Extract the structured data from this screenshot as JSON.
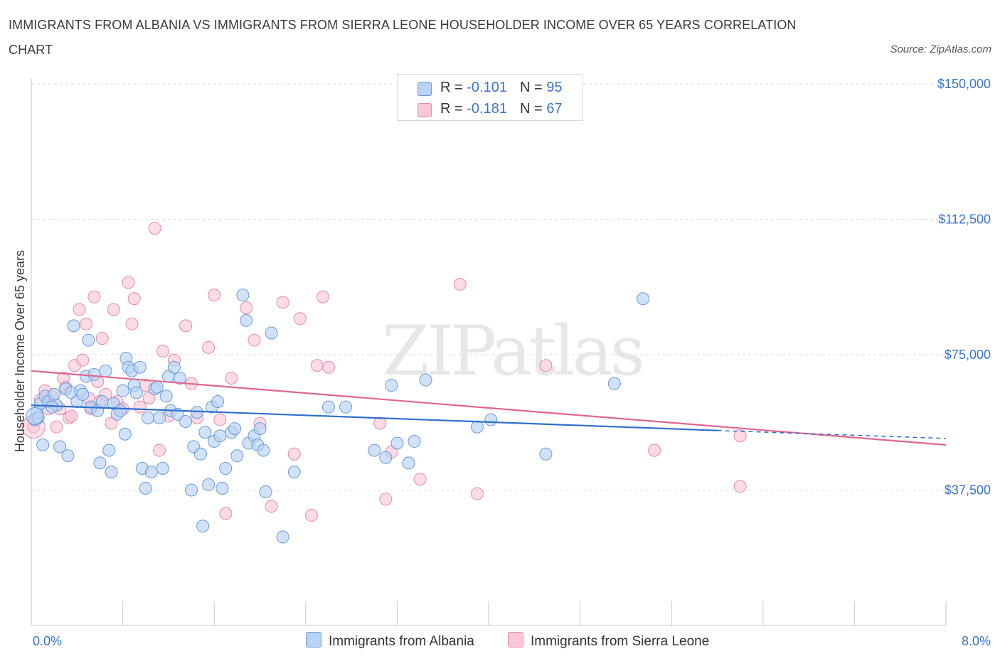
{
  "title": "IMMIGRANTS FROM ALBANIA VS IMMIGRANTS FROM SIERRA LEONE HOUSEHOLDER INCOME OVER 65 YEARS CORRELATION CHART",
  "source": "Source: ZipAtlas.com",
  "watermark": "ZIPatlas",
  "legend": {
    "albania": {
      "r_label": "R =",
      "r_value": "-0.101",
      "n_label": "N =",
      "n_value": "95"
    },
    "sierra": {
      "r_label": "R =",
      "r_value": "-0.181",
      "n_label": "N =",
      "n_value": "67"
    }
  },
  "bottom_legend": {
    "albania": "Immigrants from Albania",
    "sierra": "Immigrants from Sierra Leone"
  },
  "colors": {
    "albania_fill": "#b9d3f5",
    "albania_stroke": "#6a9ad8",
    "albania_line": "#2f6fce",
    "sierra_fill": "#f9c7d8",
    "sierra_stroke": "#e58aaa",
    "sierra_line": "#e0668f",
    "axis_text": "#3b74c9",
    "grid": "#dddddd"
  },
  "chart_data": {
    "type": "scatter",
    "title": "IMMIGRANTS FROM ALBANIA VS IMMIGRANTS FROM SIERRA LEONE HOUSEHOLDER INCOME OVER 65 YEARS CORRELATION CHART",
    "xlabel": "",
    "ylabel": "Householder Income Over 65 years",
    "xlim": [
      0,
      8
    ],
    "ylim": [
      0,
      150000
    ],
    "x_tick_labels": [
      "0.0%",
      "8.0%"
    ],
    "y_ticks": [
      37500,
      75000,
      112500,
      150000
    ],
    "y_tick_labels": [
      "$37,500",
      "$75,000",
      "$112,500",
      "$150,000"
    ],
    "grid": true,
    "legend_position": "top-center",
    "series": [
      {
        "name": "Immigrants from Albania",
        "trend": [
          [
            0.0,
            61000
          ],
          [
            6.0,
            54000
          ]
        ],
        "trend_dashed_to": [
          8.0,
          51800
        ],
        "points": [
          [
            0.03,
            57000
          ],
          [
            0.05,
            59000
          ],
          [
            0.08,
            61500
          ],
          [
            0.12,
            63500
          ],
          [
            0.15,
            62000
          ],
          [
            0.2,
            64000
          ],
          [
            0.22,
            61000
          ],
          [
            0.25,
            49500
          ],
          [
            0.3,
            65500
          ],
          [
            0.32,
            47000
          ],
          [
            0.35,
            64500
          ],
          [
            0.37,
            83000
          ],
          [
            0.4,
            62000
          ],
          [
            0.43,
            65000
          ],
          [
            0.45,
            64000
          ],
          [
            0.48,
            69000
          ],
          [
            0.5,
            79000
          ],
          [
            0.52,
            60500
          ],
          [
            0.55,
            69500
          ],
          [
            0.58,
            59500
          ],
          [
            0.6,
            45000
          ],
          [
            0.62,
            62000
          ],
          [
            0.65,
            70500
          ],
          [
            0.68,
            48500
          ],
          [
            0.7,
            42500
          ],
          [
            0.72,
            61500
          ],
          [
            0.75,
            58500
          ],
          [
            0.78,
            59500
          ],
          [
            0.8,
            65000
          ],
          [
            0.82,
            53000
          ],
          [
            0.83,
            74000
          ],
          [
            0.85,
            71500
          ],
          [
            0.88,
            70500
          ],
          [
            0.9,
            66500
          ],
          [
            0.92,
            64500
          ],
          [
            0.95,
            71500
          ],
          [
            0.97,
            43500
          ],
          [
            1.0,
            38000
          ],
          [
            1.02,
            57500
          ],
          [
            1.05,
            42500
          ],
          [
            1.08,
            65500
          ],
          [
            1.1,
            66000
          ],
          [
            1.12,
            57500
          ],
          [
            1.15,
            43500
          ],
          [
            1.18,
            63500
          ],
          [
            1.2,
            69000
          ],
          [
            1.22,
            59500
          ],
          [
            1.25,
            71500
          ],
          [
            1.28,
            58500
          ],
          [
            1.3,
            68500
          ],
          [
            1.35,
            56500
          ],
          [
            1.4,
            37500
          ],
          [
            1.42,
            49500
          ],
          [
            1.45,
            59000
          ],
          [
            1.48,
            47500
          ],
          [
            1.5,
            27500
          ],
          [
            1.52,
            53500
          ],
          [
            1.55,
            39000
          ],
          [
            1.58,
            60500
          ],
          [
            1.6,
            51000
          ],
          [
            1.63,
            62000
          ],
          [
            1.65,
            52500
          ],
          [
            1.67,
            38000
          ],
          [
            1.7,
            43500
          ],
          [
            1.75,
            53500
          ],
          [
            1.78,
            54500
          ],
          [
            1.8,
            47000
          ],
          [
            1.85,
            91500
          ],
          [
            1.88,
            84500
          ],
          [
            1.9,
            50500
          ],
          [
            1.95,
            52500
          ],
          [
            1.98,
            50000
          ],
          [
            2.0,
            54500
          ],
          [
            2.03,
            48500
          ],
          [
            2.05,
            37000
          ],
          [
            2.1,
            81000
          ],
          [
            2.2,
            24500
          ],
          [
            2.3,
            42500
          ],
          [
            2.6,
            60500
          ],
          [
            2.75,
            60500
          ],
          [
            3.0,
            48500
          ],
          [
            3.1,
            46500
          ],
          [
            3.15,
            66500
          ],
          [
            3.2,
            50500
          ],
          [
            3.3,
            45000
          ],
          [
            3.35,
            51000
          ],
          [
            3.45,
            68000
          ],
          [
            3.9,
            55000
          ],
          [
            4.02,
            57000
          ],
          [
            4.5,
            47500
          ],
          [
            5.1,
            67000
          ],
          [
            5.35,
            90500
          ],
          [
            0.06,
            57500
          ],
          [
            0.1,
            50000
          ],
          [
            0.18,
            60500
          ]
        ]
      },
      {
        "name": "Immigrants from Sierra Leone",
        "trend": [
          [
            0.0,
            70500
          ],
          [
            8.0,
            50000
          ]
        ],
        "points": [
          [
            0.02,
            55000
          ],
          [
            0.05,
            57500
          ],
          [
            0.08,
            62500
          ],
          [
            0.12,
            65000
          ],
          [
            0.15,
            60000
          ],
          [
            0.18,
            63500
          ],
          [
            0.22,
            55000
          ],
          [
            0.25,
            60000
          ],
          [
            0.28,
            68500
          ],
          [
            0.3,
            66000
          ],
          [
            0.33,
            57500
          ],
          [
            0.35,
            58000
          ],
          [
            0.38,
            72000
          ],
          [
            0.42,
            87500
          ],
          [
            0.45,
            73500
          ],
          [
            0.48,
            83500
          ],
          [
            0.5,
            63000
          ],
          [
            0.52,
            60000
          ],
          [
            0.55,
            91000
          ],
          [
            0.58,
            67500
          ],
          [
            0.6,
            62000
          ],
          [
            0.62,
            79500
          ],
          [
            0.65,
            64000
          ],
          [
            0.7,
            56000
          ],
          [
            0.72,
            87500
          ],
          [
            0.75,
            62000
          ],
          [
            0.8,
            60000
          ],
          [
            0.85,
            95000
          ],
          [
            0.88,
            83500
          ],
          [
            0.9,
            90500
          ],
          [
            0.95,
            60500
          ],
          [
            1.0,
            66500
          ],
          [
            1.03,
            63000
          ],
          [
            1.08,
            110000
          ],
          [
            1.12,
            48500
          ],
          [
            1.15,
            76000
          ],
          [
            1.2,
            58000
          ],
          [
            1.25,
            73500
          ],
          [
            1.35,
            83000
          ],
          [
            1.4,
            67000
          ],
          [
            1.45,
            57500
          ],
          [
            1.55,
            77000
          ],
          [
            1.6,
            91500
          ],
          [
            1.65,
            57000
          ],
          [
            1.7,
            31000
          ],
          [
            1.75,
            68500
          ],
          [
            1.88,
            88000
          ],
          [
            1.95,
            79000
          ],
          [
            2.0,
            56000
          ],
          [
            2.1,
            33000
          ],
          [
            2.2,
            89500
          ],
          [
            2.3,
            47500
          ],
          [
            2.35,
            85000
          ],
          [
            2.45,
            30500
          ],
          [
            2.5,
            72000
          ],
          [
            2.55,
            91000
          ],
          [
            2.6,
            71500
          ],
          [
            3.05,
            56000
          ],
          [
            3.1,
            35000
          ],
          [
            3.15,
            48000
          ],
          [
            3.4,
            40500
          ],
          [
            3.75,
            94500
          ],
          [
            3.9,
            36500
          ],
          [
            4.5,
            72000
          ],
          [
            5.45,
            48500
          ],
          [
            6.2,
            38500
          ],
          [
            6.2,
            52500
          ]
        ]
      }
    ]
  }
}
